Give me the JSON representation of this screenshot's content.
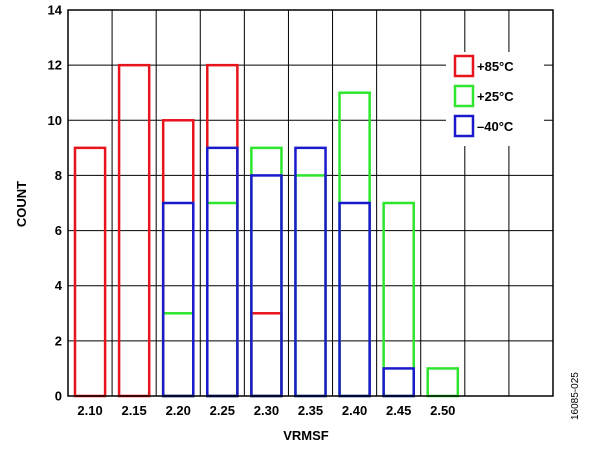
{
  "chart_data": {
    "type": "bar",
    "title": "",
    "xlabel": "VRMSF",
    "ylabel": "COUNT",
    "figure_id": "16085-025",
    "categories": [
      "2.10",
      "2.15",
      "2.20",
      "2.25",
      "2.30",
      "2.35",
      "2.40",
      "2.45",
      "2.50"
    ],
    "ylim": [
      0,
      14
    ],
    "yticks": [
      "0",
      "2",
      "4",
      "6",
      "8",
      "10",
      "12",
      "14"
    ],
    "grid": true,
    "legend_position": "top-right",
    "overlay": true,
    "series": [
      {
        "name": "+85°C",
        "color": "#e8141c",
        "values": [
          9,
          12,
          10,
          12,
          3,
          0,
          0,
          0,
          0
        ]
      },
      {
        "name": "+25°C",
        "color": "#2ee62e",
        "values": [
          0,
          0,
          3,
          7,
          9,
          8,
          11,
          7,
          1
        ]
      },
      {
        "name": "–40°C",
        "color": "#1a1acc",
        "values": [
          0,
          0,
          7,
          9,
          8,
          9,
          7,
          1,
          0
        ]
      }
    ]
  }
}
